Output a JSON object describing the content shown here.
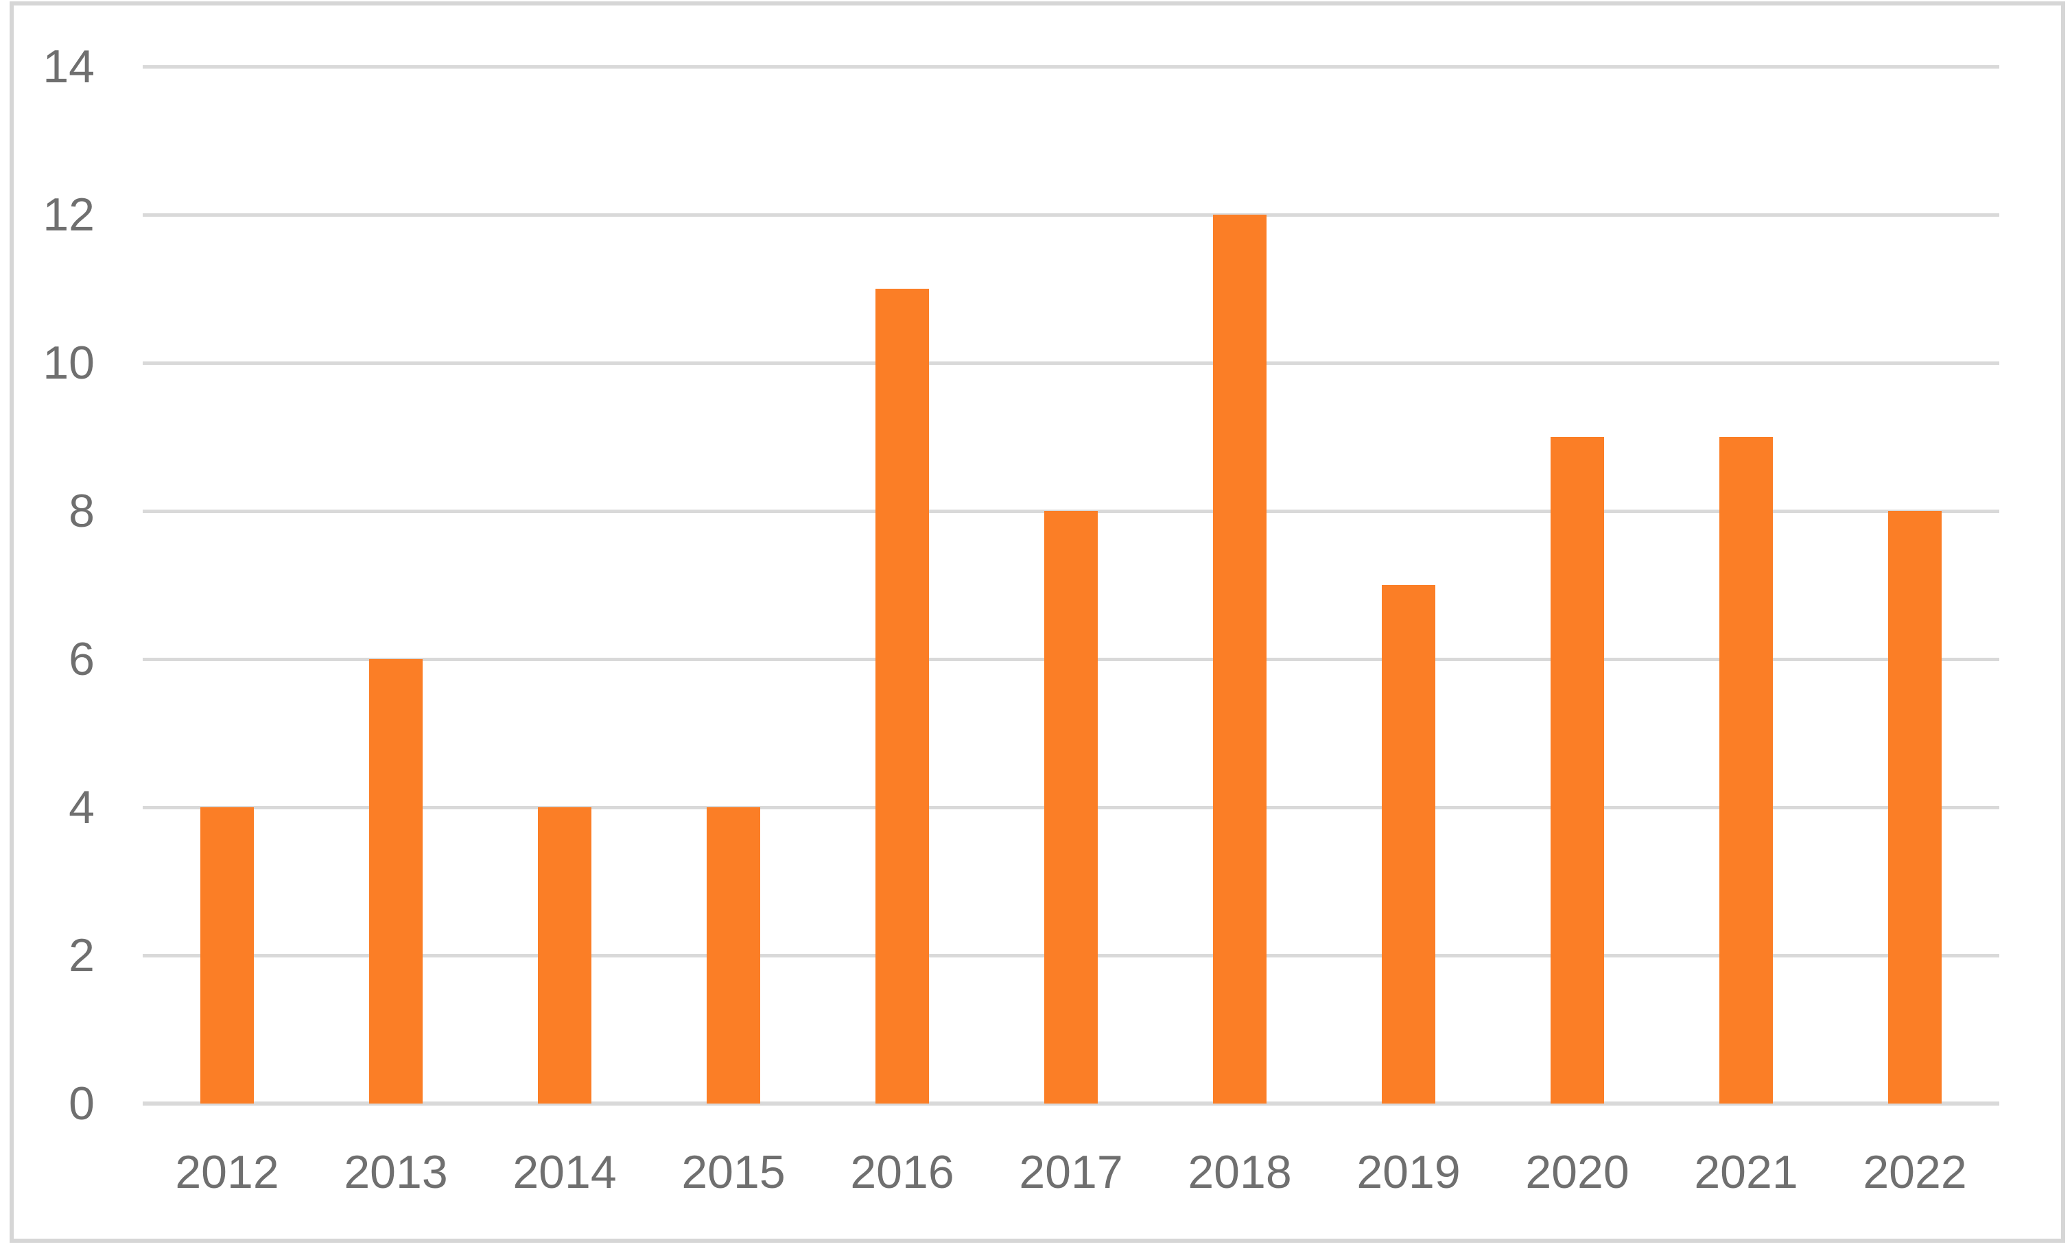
{
  "chart_data": {
    "type": "bar",
    "title": "",
    "xlabel": "",
    "ylabel": "",
    "categories": [
      "2012",
      "2013",
      "2014",
      "2015",
      "2016",
      "2017",
      "2018",
      "2019",
      "2020",
      "2021",
      "2022"
    ],
    "values": [
      4,
      6,
      4,
      4,
      11,
      8,
      12,
      7,
      9,
      9,
      8
    ],
    "ylim": [
      0,
      14
    ],
    "yticks": [
      0,
      2,
      4,
      6,
      8,
      10,
      12,
      14
    ],
    "grid": true,
    "legend": false,
    "colors": {
      "bar": "#FB7E26",
      "gridline": "#D9D9D9",
      "axis_line": "#D9D9D9",
      "tick_label": "#6F6F6F",
      "frame_border": "#D6D6D6",
      "background": "#FFFFFF"
    }
  }
}
